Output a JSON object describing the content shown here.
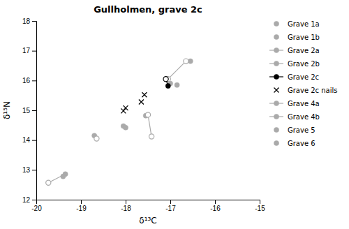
{
  "chart_data": {
    "type": "scatter",
    "title": "Gullholmen, grave 2c",
    "x_label": "δ¹³C",
    "y_label": "δ¹⁵N",
    "xlim": [
      -20,
      -15
    ],
    "ylim": [
      12,
      18
    ],
    "xticks": [
      -20,
      -19,
      -18,
      -17,
      -16,
      -15
    ],
    "yticks": [
      12,
      13,
      14,
      15,
      16,
      17,
      18
    ],
    "grid": false,
    "legend": "right",
    "series": [
      {
        "name": "Grave 1a",
        "color": "#aaaaaa",
        "marker": "circle",
        "line_style": "none",
        "parts": [
          {
            "marker": "circle",
            "x": [
              -16.55
            ],
            "values": [
              16.65
            ]
          }
        ],
        "segments": []
      },
      {
        "name": "Grave 1b",
        "color": "#aaaaaa",
        "marker": "circle",
        "line_style": "none",
        "parts": [],
        "segments": []
      },
      {
        "name": "Grave 2a",
        "color": "#aaaaaa",
        "marker": "circle",
        "line_style": "solid",
        "parts": [
          {
            "marker": "circle",
            "x": [
              -17.55
            ],
            "values": [
              14.82
            ]
          },
          {
            "marker": "circle-open",
            "x": [
              -17.5,
              -17.42
            ],
            "values": [
              14.85,
              14.12
            ]
          }
        ],
        "segments": [
          {
            "x": [
              -17.55,
              -17.5
            ],
            "values": [
              14.82,
              14.85
            ]
          },
          {
            "x": [
              -17.5,
              -17.42
            ],
            "values": [
              14.85,
              14.12
            ]
          }
        ]
      },
      {
        "name": "Grave 2b",
        "color": "#aaaaaa",
        "marker": "circle",
        "line_style": "solid",
        "parts": [
          {
            "marker": "circle",
            "x": [
              -17.0,
              -16.85
            ],
            "values": [
              15.9,
              15.85
            ]
          },
          {
            "marker": "circle-open",
            "x": [
              -17.05,
              -16.65
            ],
            "values": [
              16.05,
              16.65
            ]
          }
        ],
        "segments": [
          {
            "x": [
              -17.05,
              -17.0
            ],
            "values": [
              16.05,
              15.9
            ]
          },
          {
            "x": [
              -17.05,
              -16.65
            ],
            "values": [
              16.05,
              16.65
            ]
          }
        ]
      },
      {
        "name": "Grave 2c",
        "color": "#000000",
        "marker": "circle",
        "line_style": "solid",
        "parts": [
          {
            "marker": "circle",
            "x": [
              -17.05
            ],
            "values": [
              15.82
            ]
          },
          {
            "marker": "circle-open",
            "x": [
              -17.1
            ],
            "values": [
              16.05
            ]
          }
        ],
        "segments": [
          {
            "x": [
              -17.1,
              -17.05
            ],
            "values": [
              16.05,
              15.82
            ]
          }
        ]
      },
      {
        "name": "Grave 2c nails",
        "color": "#000000",
        "marker": "x",
        "line_style": "none",
        "parts": [
          {
            "marker": "x",
            "x": [
              -18.0,
              -18.05,
              -17.65,
              -17.58
            ],
            "values": [
              15.08,
              14.98,
              15.28,
              15.52
            ]
          }
        ],
        "segments": []
      },
      {
        "name": "Grave 4a",
        "color": "#aaaaaa",
        "marker": "circle",
        "line_style": "solid",
        "parts": [
          {
            "marker": "circle",
            "x": [
              -18.05,
              -18.0
            ],
            "values": [
              14.47,
              14.42
            ]
          }
        ],
        "segments": []
      },
      {
        "name": "Grave 4b",
        "color": "#aaaaaa",
        "marker": "circle",
        "line_style": "solid",
        "parts": [
          {
            "marker": "circle",
            "x": [
              -18.7
            ],
            "values": [
              14.15
            ]
          },
          {
            "marker": "circle-open",
            "x": [
              -18.65
            ],
            "values": [
              14.05
            ]
          }
        ],
        "segments": [
          {
            "x": [
              -18.7,
              -18.65
            ],
            "values": [
              14.15,
              14.05
            ]
          }
        ]
      },
      {
        "name": "Grave 5",
        "color": "#aaaaaa",
        "marker": "circle",
        "line_style": "none",
        "parts": [
          {
            "marker": "circle",
            "x": [
              -19.35,
              -19.4
            ],
            "values": [
              12.86,
              12.78
            ]
          }
        ],
        "segments": []
      },
      {
        "name": "Grave 6",
        "color": "#aaaaaa",
        "marker": "circle",
        "line_style": "none",
        "parts": [
          {
            "marker": "circle-open",
            "x": [
              -19.73
            ],
            "values": [
              12.57
            ]
          }
        ],
        "segments": [
          {
            "x": [
              -19.73,
              -19.35
            ],
            "values": [
              12.57,
              12.86
            ]
          }
        ]
      }
    ]
  }
}
